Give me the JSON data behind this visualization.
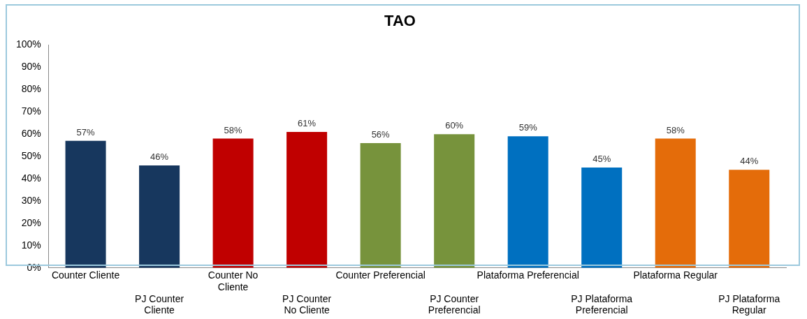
{
  "chart_data": {
    "type": "bar",
    "title": "TAO",
    "categories": [
      "Counter Cliente",
      "PJ Counter Cliente",
      "Counter No Cliente",
      "PJ Counter No Cliente",
      "Counter Preferencial",
      "PJ Counter Preferencial",
      "Plataforma Preferencial",
      "PJ Plataforma Preferencial",
      "Plataforma Regular",
      "PJ Plataforma Regular"
    ],
    "values": [
      57,
      46,
      58,
      61,
      56,
      60,
      59,
      45,
      58,
      44
    ],
    "value_labels": [
      "57%",
      "46%",
      "58%",
      "61%",
      "56%",
      "60%",
      "59%",
      "45%",
      "58%",
      "44%"
    ],
    "colors": [
      "#17375e",
      "#17375e",
      "#c00000",
      "#c00000",
      "#77933c",
      "#77933c",
      "#0070c0",
      "#0070c0",
      "#e46c0a",
      "#e46c0a"
    ],
    "ylim": [
      0,
      100
    ],
    "yticks": [
      {
        "value": 0,
        "label": "0%"
      },
      {
        "value": 10,
        "label": "10%"
      },
      {
        "value": 20,
        "label": "20%"
      },
      {
        "value": 30,
        "label": "30%"
      },
      {
        "value": 40,
        "label": "40%"
      },
      {
        "value": 50,
        "label": "50%"
      },
      {
        "value": 60,
        "label": "60%"
      },
      {
        "value": 70,
        "label": "70%"
      },
      {
        "value": 80,
        "label": "80%"
      },
      {
        "value": 90,
        "label": "90%"
      },
      {
        "value": 100,
        "label": "100%"
      }
    ],
    "grid": false,
    "legend": false
  }
}
